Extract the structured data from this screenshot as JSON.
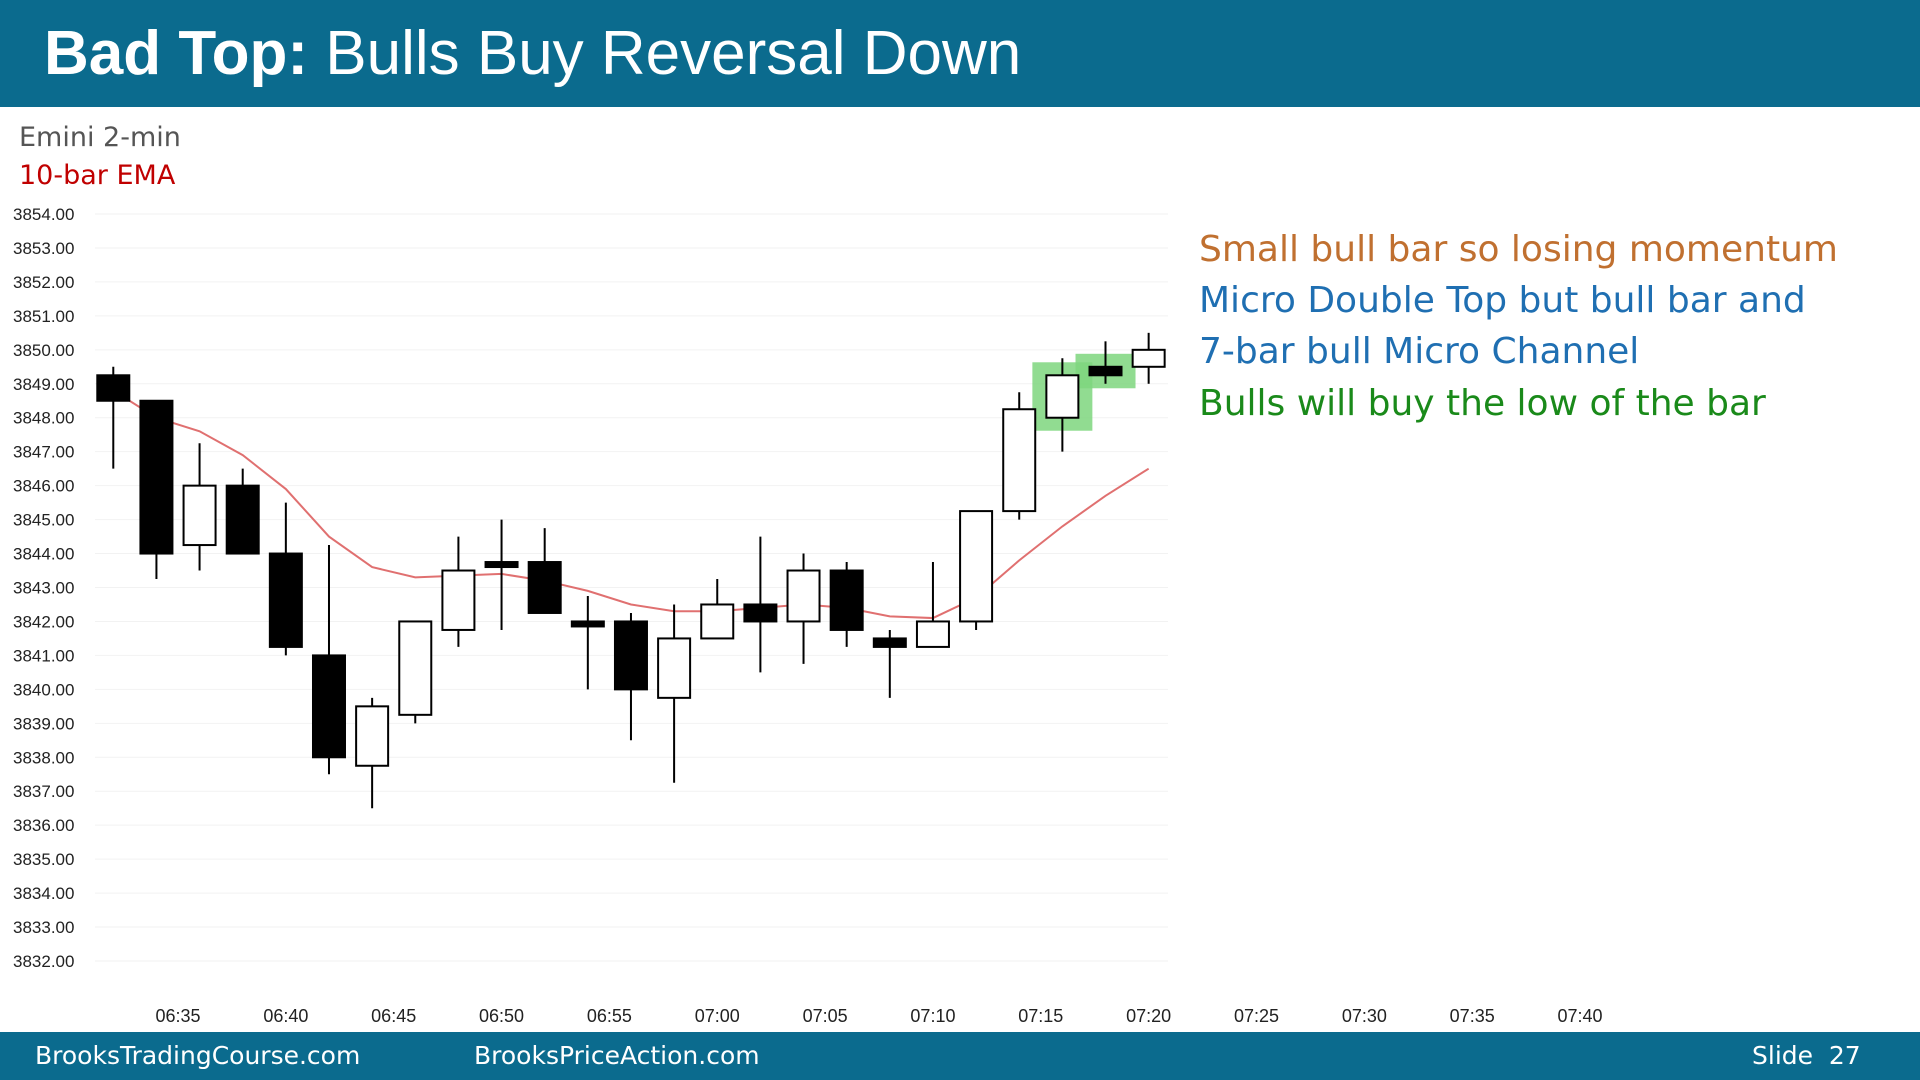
{
  "slide": {
    "title_bold": "Bad Top:",
    "title_rest": " Bulls Buy Reversal Down",
    "subtitle1": "Emini 2-min",
    "subtitle2": "10-bar EMA",
    "colors": {
      "header": "#0b6b8e",
      "ema": "#e07070",
      "highlight": "#7ed67e",
      "note_orange": "#c07030",
      "note_blue": "#1f6fb2",
      "note_green": "#1a8a1a"
    },
    "notes": [
      {
        "text": "Small bull bar so losing momentum",
        "color": "#c07030"
      },
      {
        "text": "Micro Double Top but bull bar and",
        "color": "#1f6fb2"
      },
      {
        "text": "7-bar bull Micro Channel",
        "color": "#1f6fb2"
      },
      {
        "text": "Bulls will buy the low of the bar",
        "color": "#1a8a1a"
      }
    ],
    "footer": {
      "left": "BrooksTradingCourse.com",
      "center": "BrooksPriceAction.com",
      "right": "Slide  27"
    }
  },
  "chart_data": {
    "type": "candlestick",
    "title": "Emini 2-min",
    "ylim": [
      3832,
      3854
    ],
    "y_ticks": [
      "3854.00",
      "3853.00",
      "3852.00",
      "3851.00",
      "3850.00",
      "3849.00",
      "3848.00",
      "3847.00",
      "3846.00",
      "3845.00",
      "3844.00",
      "3843.00",
      "3842.00",
      "3841.00",
      "3840.00",
      "3839.00",
      "3838.00",
      "3837.00",
      "3836.00",
      "3835.00",
      "3834.00",
      "3833.00",
      "3832.00"
    ],
    "x_ticks": [
      "06:35",
      "06:40",
      "06:45",
      "06:50",
      "06:55",
      "07:00",
      "07:05",
      "07:10",
      "07:15",
      "07:20",
      "07:25",
      "07:30",
      "07:35",
      "07:40"
    ],
    "bars": [
      {
        "time": "06:32",
        "open": 3849.25,
        "high": 3849.5,
        "low": 3846.5,
        "close": 3848.5
      },
      {
        "time": "06:34",
        "open": 3848.5,
        "high": 3848.5,
        "low": 3843.25,
        "close": 3844.0
      },
      {
        "time": "06:36",
        "open": 3844.25,
        "high": 3847.25,
        "low": 3843.5,
        "close": 3846.0
      },
      {
        "time": "06:38",
        "open": 3846.0,
        "high": 3846.5,
        "low": 3844.0,
        "close": 3844.0
      },
      {
        "time": "06:40",
        "open": 3844.0,
        "high": 3845.5,
        "low": 3841.0,
        "close": 3841.25
      },
      {
        "time": "06:42",
        "open": 3841.0,
        "high": 3844.25,
        "low": 3837.5,
        "close": 3838.0
      },
      {
        "time": "06:44",
        "open": 3837.75,
        "high": 3839.75,
        "low": 3836.5,
        "close": 3839.5
      },
      {
        "time": "06:46",
        "open": 3839.25,
        "high": 3842.0,
        "low": 3839.0,
        "close": 3842.0
      },
      {
        "time": "06:48",
        "open": 3841.75,
        "high": 3844.5,
        "low": 3841.25,
        "close": 3843.5
      },
      {
        "time": "06:50",
        "open": 3843.75,
        "high": 3845.0,
        "low": 3841.75,
        "close": 3843.75
      },
      {
        "time": "06:52",
        "open": 3843.75,
        "high": 3844.75,
        "low": 3842.25,
        "close": 3842.25
      },
      {
        "time": "06:54",
        "open": 3842.0,
        "high": 3842.75,
        "low": 3840.0,
        "close": 3842.0
      },
      {
        "time": "06:56",
        "open": 3842.0,
        "high": 3842.25,
        "low": 3838.5,
        "close": 3840.0
      },
      {
        "time": "06:58",
        "open": 3839.75,
        "high": 3842.5,
        "low": 3837.25,
        "close": 3841.5
      },
      {
        "time": "07:00",
        "open": 3841.5,
        "high": 3843.25,
        "low": 3841.5,
        "close": 3842.5
      },
      {
        "time": "07:02",
        "open": 3842.5,
        "high": 3844.5,
        "low": 3840.5,
        "close": 3842.0
      },
      {
        "time": "07:04",
        "open": 3842.0,
        "high": 3844.0,
        "low": 3840.75,
        "close": 3843.5
      },
      {
        "time": "07:06",
        "open": 3843.5,
        "high": 3843.75,
        "low": 3841.25,
        "close": 3841.75
      },
      {
        "time": "07:08",
        "open": 3841.5,
        "high": 3841.75,
        "low": 3839.75,
        "close": 3841.25
      },
      {
        "time": "07:10",
        "open": 3841.25,
        "high": 3843.75,
        "low": 3841.25,
        "close": 3842.0
      },
      {
        "time": "07:12",
        "open": 3842.0,
        "high": 3845.25,
        "low": 3841.75,
        "close": 3845.25
      },
      {
        "time": "07:14",
        "open": 3845.25,
        "high": 3848.75,
        "low": 3845.0,
        "close": 3848.25
      },
      {
        "time": "07:16",
        "open": 3848.0,
        "high": 3849.75,
        "low": 3847.0,
        "close": 3849.25
      },
      {
        "time": "07:18",
        "open": 3849.5,
        "high": 3850.25,
        "low": 3849.0,
        "close": 3849.25
      },
      {
        "time": "07:20",
        "open": 3849.5,
        "high": 3850.5,
        "low": 3849.0,
        "close": 3850.0
      }
    ],
    "ema": [
      3848.8,
      3848.0,
      3847.6,
      3846.9,
      3845.9,
      3844.5,
      3843.6,
      3843.3,
      3843.35,
      3843.4,
      3843.2,
      3842.9,
      3842.5,
      3842.3,
      3842.3,
      3842.4,
      3842.5,
      3842.4,
      3842.15,
      3842.1,
      3842.7,
      3843.8,
      3844.8,
      3845.7,
      3846.5
    ],
    "highlights": [
      {
        "bar": "07:16"
      },
      {
        "bar": "07:18"
      }
    ]
  }
}
